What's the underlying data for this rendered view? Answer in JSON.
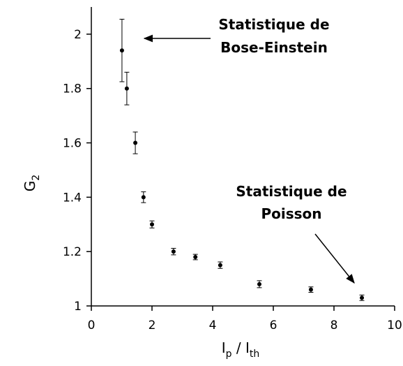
{
  "chart_data": {
    "type": "scatter",
    "x": [
      1.01,
      1.17,
      1.45,
      1.72,
      2.0,
      2.71,
      3.43,
      4.25,
      5.54,
      7.24,
      8.92
    ],
    "values": [
      1.94,
      1.8,
      1.6,
      1.4,
      1.3,
      1.2,
      1.18,
      1.15,
      1.08,
      1.06,
      1.03
    ],
    "errors": [
      0.115,
      0.06,
      0.04,
      0.02,
      0.013,
      0.012,
      0.01,
      0.012,
      0.013,
      0.01,
      0.01
    ],
    "color": "#000000",
    "xlim": [
      0,
      10
    ],
    "xticks": [
      0,
      2,
      4,
      6,
      8,
      10
    ],
    "ylim": [
      1,
      2.1
    ],
    "yticks": [
      1,
      1.2,
      1.4,
      1.6,
      1.8,
      2
    ],
    "xlabel": [
      "I",
      "p",
      " / I",
      "th"
    ],
    "ylabel": [
      "G",
      "2"
    ],
    "annotations": [
      {
        "lines": [
          "Statistique de",
          "Bose-Einstein"
        ]
      },
      {
        "lines": [
          "Statistique de",
          "Poisson"
        ]
      }
    ]
  }
}
